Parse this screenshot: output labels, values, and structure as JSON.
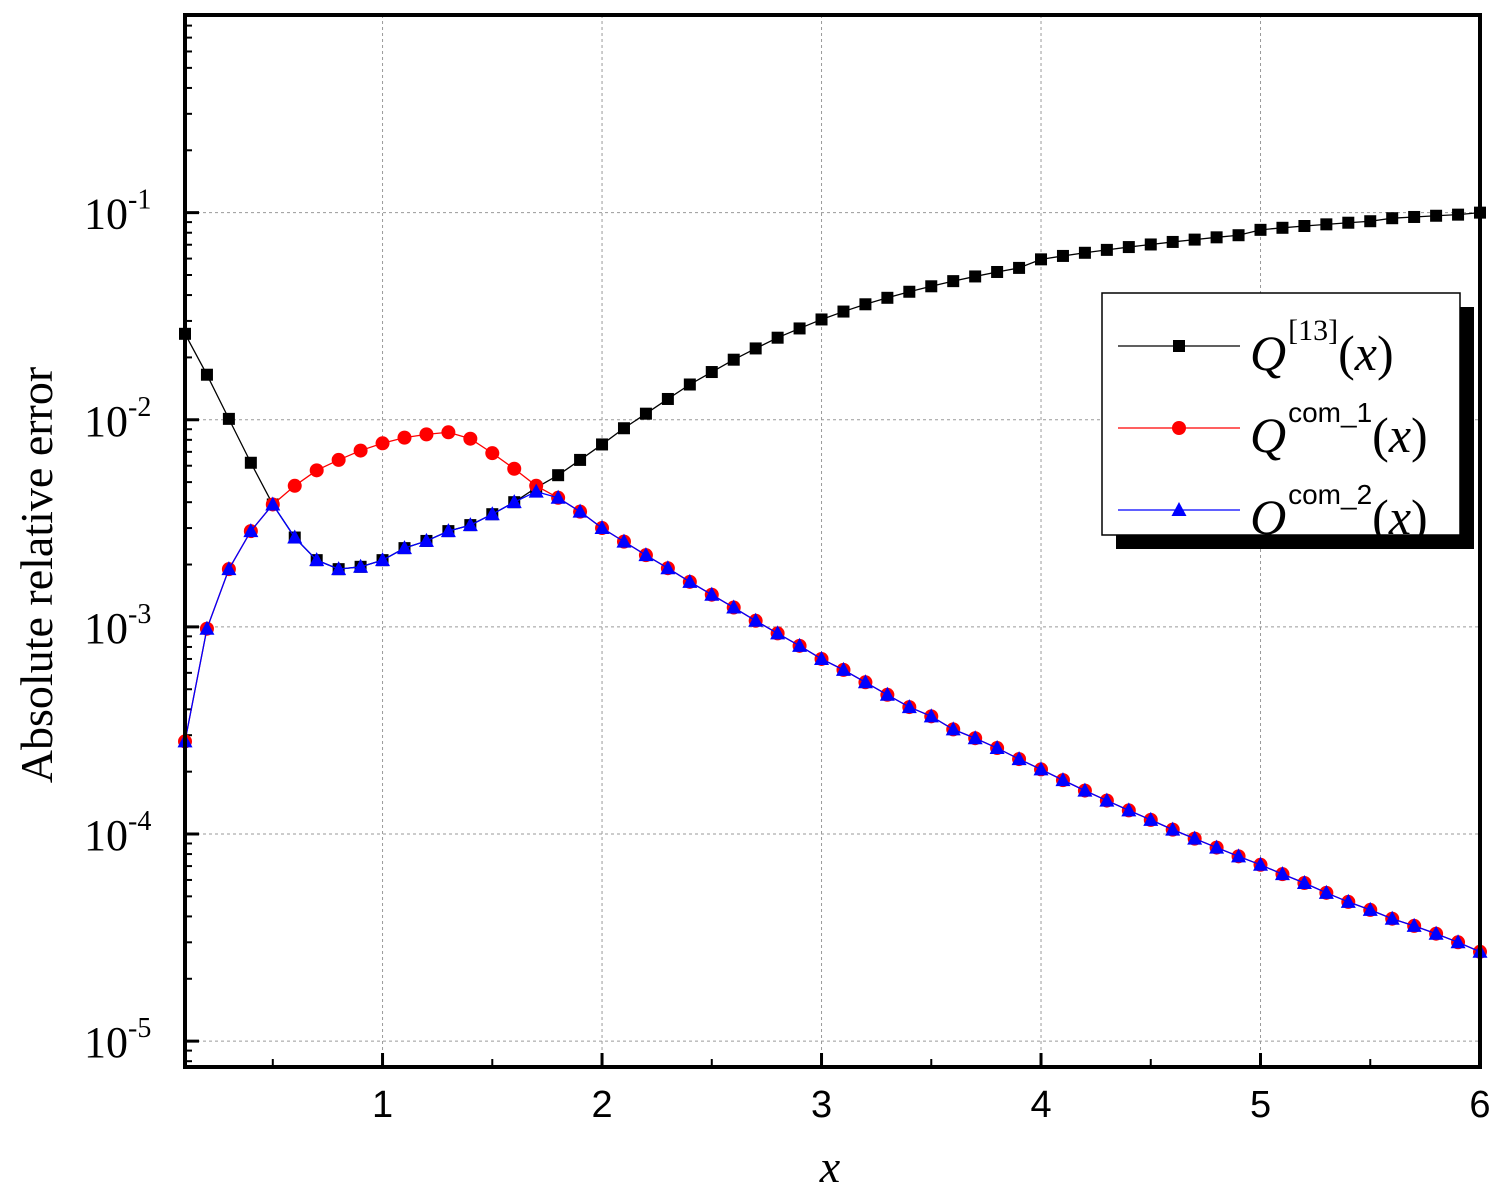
{
  "chart_data": {
    "type": "line",
    "xlabel": "x",
    "ylabel": "Absolute relative error",
    "xlim": [
      0.1,
      6
    ],
    "ylim": [
      7.5e-06,
      0.9
    ],
    "yscale": "log",
    "grid": true,
    "legend_position": "top-right",
    "x_ticks": [
      1,
      2,
      3,
      4,
      5,
      6
    ],
    "y_ticks": [
      {
        "value": 1e-05,
        "base": "10",
        "exp": "-5"
      },
      {
        "value": 0.0001,
        "base": "10",
        "exp": "-4"
      },
      {
        "value": 0.001,
        "base": "10",
        "exp": "-3"
      },
      {
        "value": 0.01,
        "base": "10",
        "exp": "-2"
      },
      {
        "value": 0.1,
        "base": "10",
        "exp": "-1"
      }
    ],
    "x": [
      0.1,
      0.2,
      0.3,
      0.4,
      0.5,
      0.6,
      0.7,
      0.8,
      0.9,
      1.0,
      1.1,
      1.2,
      1.3,
      1.4,
      1.5,
      1.6,
      1.7,
      1.8,
      1.9,
      2.0,
      2.1,
      2.2,
      2.3,
      2.4,
      2.5,
      2.6,
      2.7,
      2.8,
      2.9,
      3.0,
      3.1,
      3.2,
      3.3,
      3.4,
      3.5,
      3.6,
      3.7,
      3.8,
      3.9,
      4.0,
      4.1,
      4.2,
      4.3,
      4.4,
      4.5,
      4.6,
      4.7,
      4.8,
      4.9,
      5.0,
      5.1,
      5.2,
      5.3,
      5.4,
      5.5,
      5.6,
      5.7,
      5.8,
      5.9,
      6.0
    ],
    "series": [
      {
        "name": "Q[13](x)",
        "label_base": "Q",
        "label_sup": "[13]",
        "label_arg": "x",
        "color": "#000000",
        "marker": "square",
        "values": [
          0.026,
          0.0165,
          0.0101,
          0.0062,
          0.0039,
          0.0027,
          0.0021,
          0.0019,
          0.00195,
          0.0021,
          0.0024,
          0.0026,
          0.0029,
          0.0031,
          0.0035,
          0.004,
          0.0047,
          0.0054,
          0.0064,
          0.0076,
          0.0091,
          0.0107,
          0.0126,
          0.0148,
          0.017,
          0.0195,
          0.0221,
          0.0249,
          0.0276,
          0.0305,
          0.0333,
          0.0361,
          0.0388,
          0.0415,
          0.0441,
          0.0467,
          0.0492,
          0.0517,
          0.0541,
          0.0595,
          0.0618,
          0.064,
          0.0661,
          0.0682,
          0.0702,
          0.0722,
          0.0741,
          0.076,
          0.0778,
          0.0826,
          0.0845,
          0.0862,
          0.0878,
          0.0894,
          0.0909,
          0.094,
          0.0953,
          0.0966,
          0.0978,
          0.1
        ]
      },
      {
        "name": "Qcom_1(x)",
        "label_base": "Q",
        "label_sup": "com_1",
        "label_arg": "x",
        "color": "#ff0000",
        "marker": "circle",
        "values": [
          0.00028,
          0.00098,
          0.0019,
          0.0029,
          0.0039,
          0.0048,
          0.0057,
          0.0064,
          0.0071,
          0.0077,
          0.0082,
          0.0085,
          0.0087,
          0.0081,
          0.0069,
          0.0058,
          0.0048,
          0.0042,
          0.0036,
          0.003,
          0.00258,
          0.00222,
          0.00192,
          0.00165,
          0.00143,
          0.00124,
          0.00107,
          0.00093,
          0.00081,
          0.0007,
          0.00062,
          0.00054,
          0.00047,
          0.00041,
          0.00037,
          0.00032,
          0.00029,
          0.00026,
          0.00023,
          0.000205,
          0.000182,
          0.000162,
          0.000145,
          0.00013,
          0.000117,
          0.000105,
          9.5e-05,
          8.6e-05,
          7.8e-05,
          7.1e-05,
          6.4e-05,
          5.8e-05,
          5.2e-05,
          4.7e-05,
          4.3e-05,
          3.9e-05,
          3.6e-05,
          3.3e-05,
          3e-05,
          2.7e-05
        ]
      },
      {
        "name": "Qcom_2(x)",
        "label_base": "Q",
        "label_sup": "com_2",
        "label_arg": "x",
        "color": "#0000ff",
        "marker": "triangle",
        "values": [
          0.00028,
          0.00098,
          0.0019,
          0.0029,
          0.0039,
          0.0027,
          0.0021,
          0.0019,
          0.00195,
          0.0021,
          0.0024,
          0.0026,
          0.0029,
          0.0031,
          0.0035,
          0.004,
          0.0045,
          0.0042,
          0.0036,
          0.003,
          0.00258,
          0.00222,
          0.00192,
          0.00165,
          0.00143,
          0.00124,
          0.00107,
          0.00093,
          0.00081,
          0.0007,
          0.00062,
          0.00054,
          0.00047,
          0.00041,
          0.00037,
          0.00032,
          0.00029,
          0.00026,
          0.00023,
          0.000205,
          0.000182,
          0.000162,
          0.000145,
          0.00013,
          0.000117,
          0.000105,
          9.5e-05,
          8.6e-05,
          7.8e-05,
          7.1e-05,
          6.4e-05,
          5.8e-05,
          5.2e-05,
          4.7e-05,
          4.3e-05,
          3.9e-05,
          3.6e-05,
          3.3e-05,
          3e-05,
          2.7e-05
        ]
      }
    ]
  }
}
